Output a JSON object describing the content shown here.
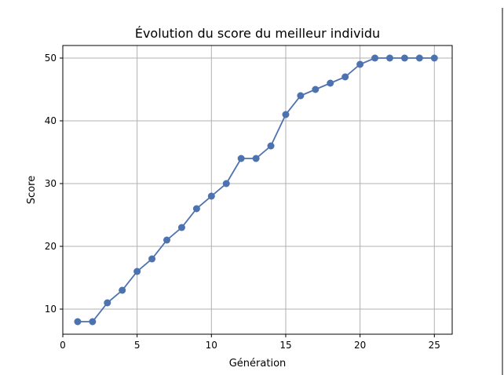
{
  "chart_data": {
    "type": "line",
    "title": "Évolution du score du meilleur individu",
    "xlabel": "Génération",
    "ylabel": "Score",
    "xlim": [
      0,
      26.2
    ],
    "ylim": [
      6,
      52
    ],
    "xticks": [
      0,
      5,
      10,
      15,
      20,
      25
    ],
    "yticks": [
      10,
      20,
      30,
      40,
      50
    ],
    "grid": true,
    "series": [
      {
        "color": "#4c72b0",
        "x": [
          1,
          2,
          3,
          4,
          5,
          6,
          7,
          8,
          9,
          10,
          11,
          12,
          13,
          14,
          15,
          16,
          17,
          18,
          19,
          20,
          21,
          22,
          23,
          24,
          25
        ],
        "values": [
          8,
          8,
          11,
          13,
          16,
          18,
          21,
          23,
          26,
          28,
          30,
          34,
          34,
          36,
          41,
          44,
          45,
          46,
          47,
          49,
          50,
          50,
          50,
          50,
          50
        ]
      }
    ]
  }
}
